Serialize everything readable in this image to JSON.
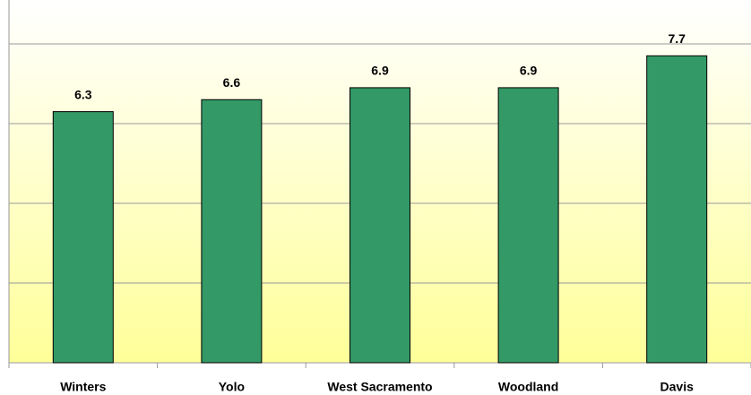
{
  "chart_data": {
    "type": "bar",
    "categories": [
      "Winters",
      "Yolo",
      "West Sacramento",
      "Woodland",
      "Davis"
    ],
    "values": [
      6.3,
      6.6,
      6.9,
      6.9,
      7.7
    ],
    "color": "#339966",
    "ylim": [
      0,
      9.1
    ],
    "yticks": [
      0,
      2,
      4,
      6,
      8
    ],
    "grid": true
  }
}
